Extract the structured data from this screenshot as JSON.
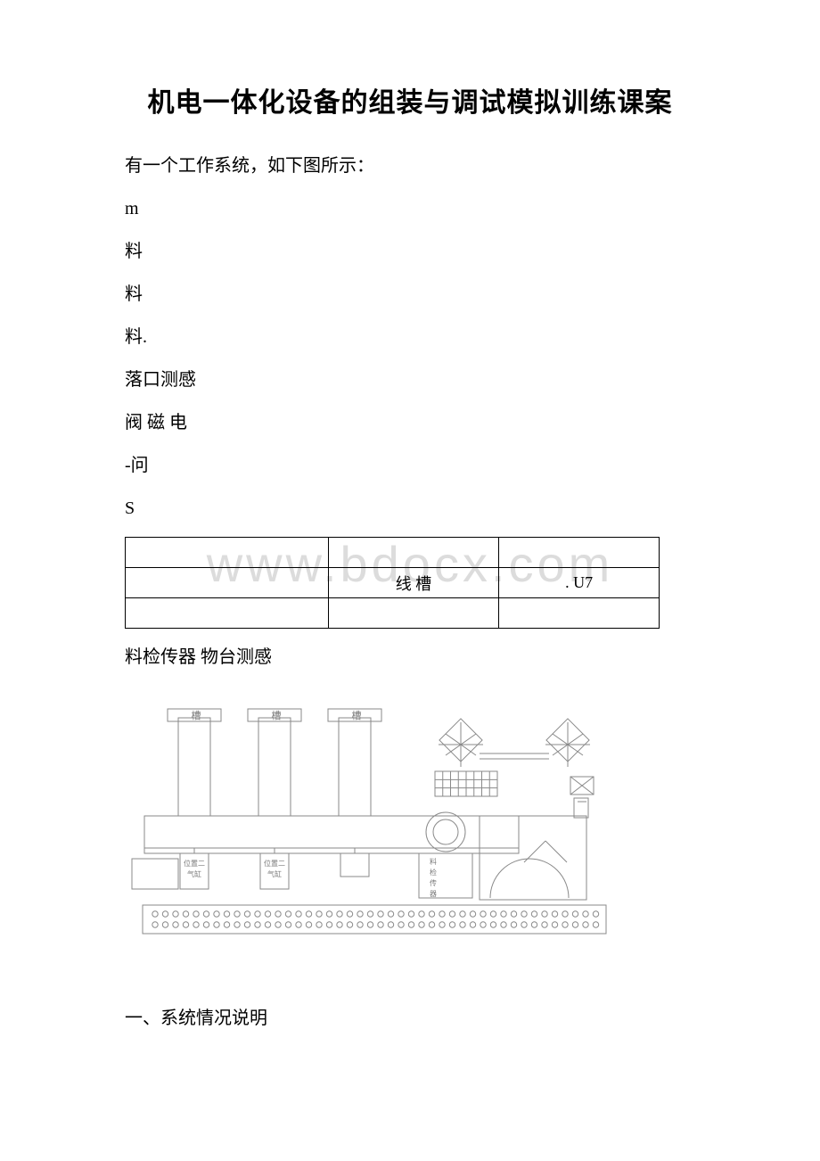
{
  "watermark": "www.bdocx.com",
  "title": "机电一体化设备的组装与调试模拟训练课案",
  "lines": {
    "l1": "有一个工作系统，如下图所示：",
    "l2": "m",
    "l3": "料",
    "l4": "料",
    "l5": "料.",
    "l6": "落口测感",
    "l7": "阀 磁 电",
    "l8": "-问",
    "l9": "S"
  },
  "table": {
    "r2c2": "线 槽",
    "r2c3": ". U7"
  },
  "below_table": "料检传器 物台测感",
  "diagram": {
    "slot_label": "槽",
    "cyl1_l1": "位置二",
    "cyl1_l2": "气缸",
    "cyl2_l1": "位置二",
    "cyl2_l2": "气缸",
    "vlabel_l1": "料",
    "vlabel_l2": "检",
    "vlabel_l3": "传",
    "vlabel_l4": "器",
    "stroke": "#8a8a8a",
    "fill": "#ffffff",
    "text": "#7a7a7a"
  },
  "section1": "一、系统情况说明"
}
